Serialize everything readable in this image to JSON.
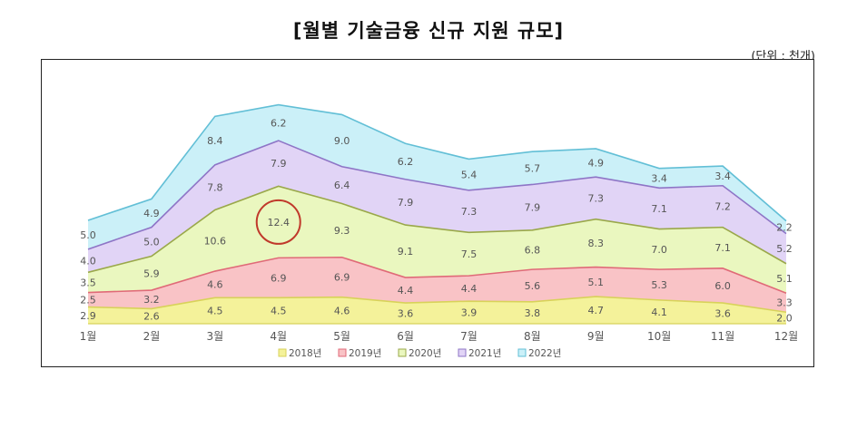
{
  "title": "[월별 기술금융 신규 지원 규모]",
  "unit": "(단위 : 천개)",
  "chart_data": {
    "type": "area",
    "stacked": true,
    "categories": [
      "1월",
      "2월",
      "3월",
      "4월",
      "5월",
      "6월",
      "7월",
      "8월",
      "9월",
      "10월",
      "11월",
      "12월"
    ],
    "series": [
      {
        "name": "2018년",
        "values": [
          2.9,
          2.6,
          4.5,
          4.5,
          4.6,
          3.6,
          3.9,
          3.8,
          4.7,
          4.1,
          3.6,
          2.0
        ],
        "color": "#f4f29a",
        "line": "#d8d25a"
      },
      {
        "name": "2019년",
        "values": [
          2.5,
          3.2,
          4.6,
          6.9,
          6.9,
          4.4,
          4.4,
          5.6,
          5.1,
          5.3,
          6.0,
          3.3
        ],
        "color": "#f9c3c6",
        "line": "#e06a78"
      },
      {
        "name": "2020년",
        "values": [
          3.5,
          5.9,
          10.6,
          12.4,
          9.3,
          9.1,
          7.5,
          6.8,
          8.3,
          7.0,
          7.1,
          5.1
        ],
        "color": "#eaf7bf",
        "line": "#9aa84a"
      },
      {
        "name": "2021년",
        "values": [
          4.0,
          5.0,
          7.8,
          7.9,
          6.4,
          7.9,
          7.3,
          7.9,
          7.3,
          7.1,
          7.2,
          5.2
        ],
        "color": "#e1d4f6",
        "line": "#8e75c6"
      },
      {
        "name": "2022년",
        "values": [
          5.0,
          4.9,
          8.4,
          6.2,
          9.0,
          6.2,
          5.4,
          5.7,
          4.9,
          3.4,
          3.4,
          2.2
        ],
        "color": "#cbf0f8",
        "line": "#62bfd6"
      }
    ],
    "legend_position": "bottom",
    "highlight": {
      "series": "2020년",
      "category": "4월",
      "value": 12.4,
      "color": "#c0392b"
    }
  }
}
